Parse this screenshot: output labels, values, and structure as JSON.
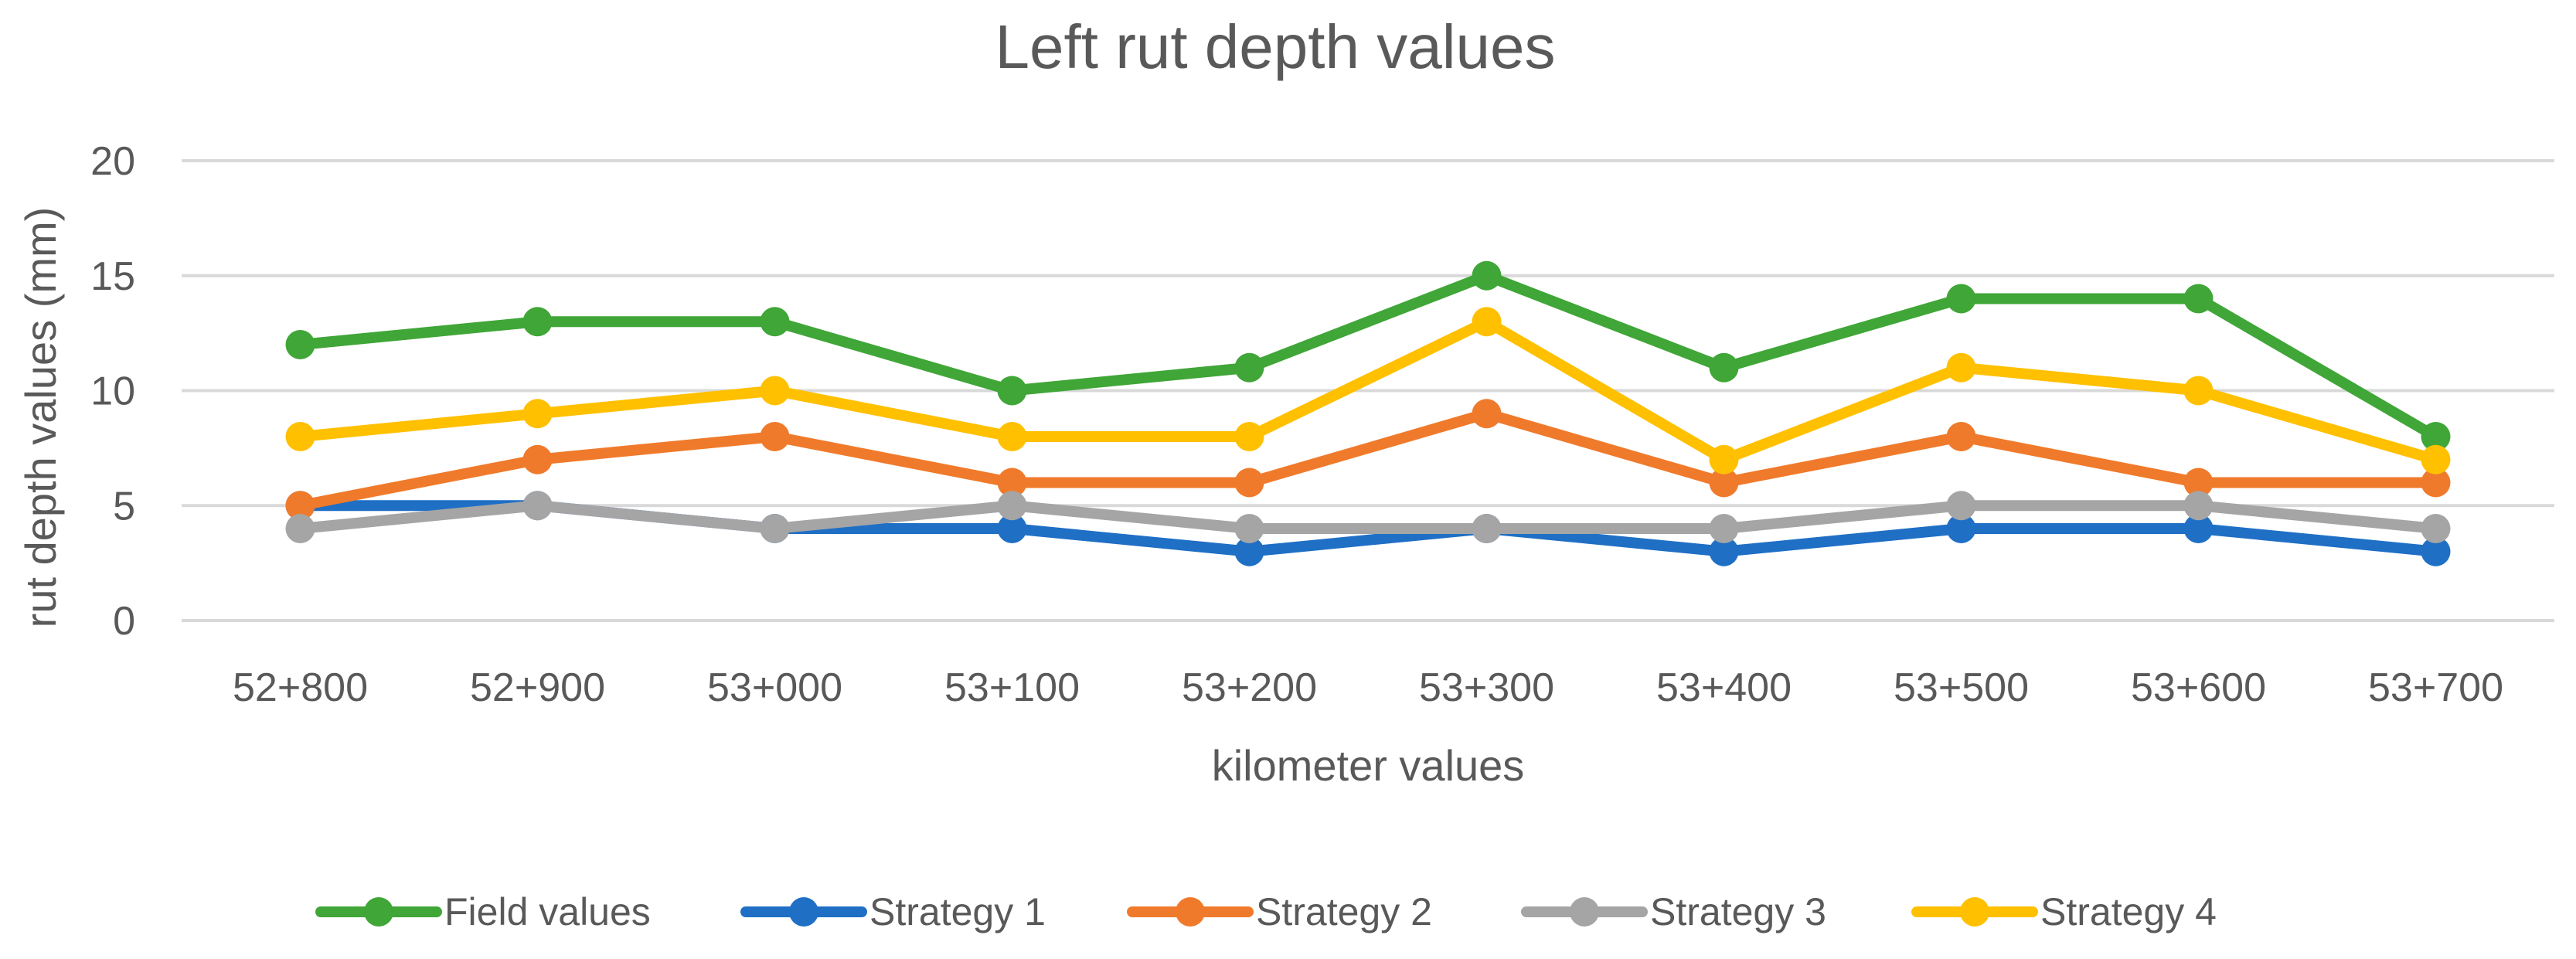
{
  "chart_data": {
    "type": "line",
    "title": "Left rut depth values",
    "xlabel": "kilometer values",
    "ylabel": "rut depth values (mm)",
    "ylim": [
      0,
      20
    ],
    "yticks": [
      "0",
      "5",
      "10",
      "15",
      "20"
    ],
    "grid": "horizontal",
    "legend_position": "bottom",
    "categories": [
      "52+800",
      "52+900",
      "53+000",
      "53+100",
      "53+200",
      "53+300",
      "53+400",
      "53+500",
      "53+600",
      "53+700"
    ],
    "series": [
      {
        "name": "Field values",
        "color": "#3FA637",
        "values": [
          12,
          13,
          13,
          10,
          11,
          15,
          11,
          14,
          14,
          8
        ]
      },
      {
        "name": "Strategy 1",
        "color": "#1F6FC5",
        "values": [
          5,
          5,
          4,
          4,
          3,
          4,
          3,
          4,
          4,
          3
        ]
      },
      {
        "name": "Strategy 2",
        "color": "#F07A2B",
        "values": [
          5,
          7,
          8,
          6,
          6,
          9,
          6,
          8,
          6,
          6
        ]
      },
      {
        "name": "Strategy 3",
        "color": "#A5A5A5",
        "values": [
          4,
          5,
          4,
          5,
          4,
          4,
          4,
          5,
          5,
          4
        ]
      },
      {
        "name": "Strategy 4",
        "color": "#FFC000",
        "values": [
          8,
          9,
          10,
          8,
          8,
          13,
          7,
          11,
          10,
          7
        ]
      }
    ]
  }
}
